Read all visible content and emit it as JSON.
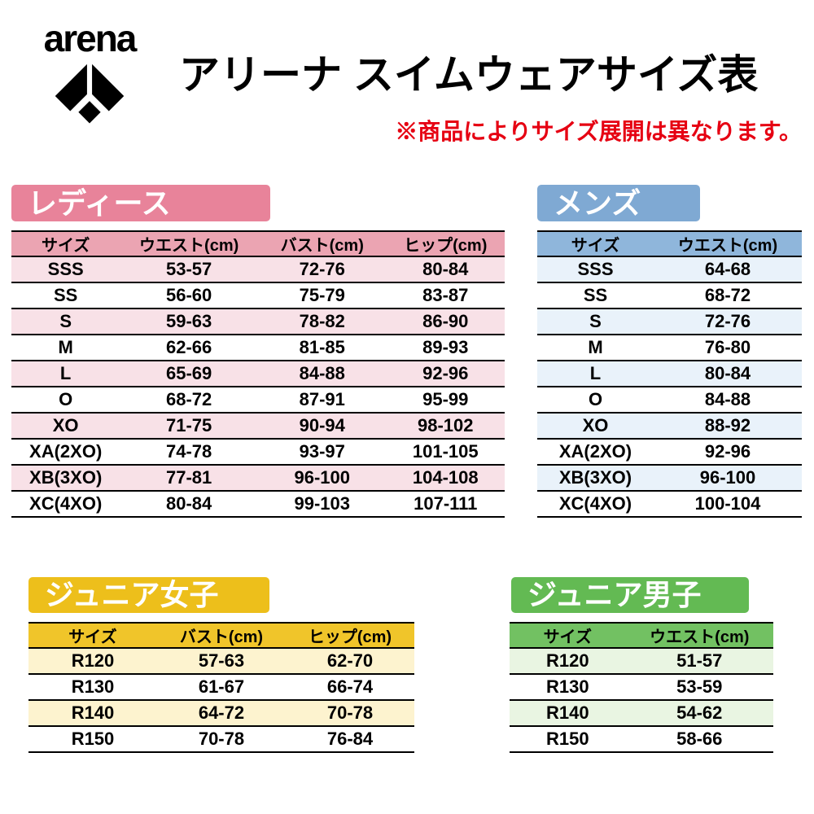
{
  "logo": {
    "wordmark": "arena"
  },
  "header": {
    "title": "アリーナ スイムウェアサイズ表",
    "note": "※商品によりサイズ展開は異なります。"
  },
  "sections": {
    "ladies": {
      "badge": "レディース",
      "headers": [
        "サイズ",
        "ウエスト(cm)",
        "バスト(cm)",
        "ヒップ(cm)"
      ],
      "rows": [
        [
          "SSS",
          "53-57",
          "72-76",
          "80-84"
        ],
        [
          "SS",
          "56-60",
          "75-79",
          "83-87"
        ],
        [
          "S",
          "59-63",
          "78-82",
          "86-90"
        ],
        [
          "M",
          "62-66",
          "81-85",
          "89-93"
        ],
        [
          "L",
          "65-69",
          "84-88",
          "92-96"
        ],
        [
          "O",
          "68-72",
          "87-91",
          "95-99"
        ],
        [
          "XO",
          "71-75",
          "90-94",
          "98-102"
        ],
        [
          "XA(2XO)",
          "74-78",
          "93-97",
          "101-105"
        ],
        [
          "XB(3XO)",
          "77-81",
          "96-100",
          "104-108"
        ],
        [
          "XC(4XO)",
          "80-84",
          "99-103",
          "107-111"
        ]
      ],
      "colors": {
        "badge": "#e8839a",
        "header": "#eba4b2",
        "row_tint": "#f8e1e7",
        "row_alt": "#ffffff"
      }
    },
    "mens": {
      "badge": "メンズ",
      "headers": [
        "サイズ",
        "ウエスト(cm)"
      ],
      "rows": [
        [
          "SSS",
          "64-68"
        ],
        [
          "SS",
          "68-72"
        ],
        [
          "S",
          "72-76"
        ],
        [
          "M",
          "76-80"
        ],
        [
          "L",
          "80-84"
        ],
        [
          "O",
          "84-88"
        ],
        [
          "XO",
          "88-92"
        ],
        [
          "XA(2XO)",
          "92-96"
        ],
        [
          "XB(3XO)",
          "96-100"
        ],
        [
          "XC(4XO)",
          "100-104"
        ]
      ],
      "colors": {
        "badge": "#7fa9d3",
        "header": "#8fb6db",
        "row_tint": "#e9f2fa",
        "row_alt": "#ffffff"
      }
    },
    "junior_girls": {
      "badge": "ジュニア女子",
      "headers": [
        "サイズ",
        "バスト(cm)",
        "ヒップ(cm)"
      ],
      "rows": [
        [
          "R120",
          "57-63",
          "62-70"
        ],
        [
          "R130",
          "61-67",
          "66-74"
        ],
        [
          "R140",
          "64-72",
          "70-78"
        ],
        [
          "R150",
          "70-78",
          "76-84"
        ]
      ],
      "colors": {
        "badge": "#edbf1b",
        "header": "#f0c52a",
        "row_tint": "#fdf3cf",
        "row_alt": "#ffffff"
      }
    },
    "junior_boys": {
      "badge": "ジュニア男子",
      "headers": [
        "サイズ",
        "ウエスト(cm)"
      ],
      "rows": [
        [
          "R120",
          "51-57"
        ],
        [
          "R130",
          "53-59"
        ],
        [
          "R140",
          "54-62"
        ],
        [
          "R150",
          "58-66"
        ]
      ],
      "colors": {
        "badge": "#63ba53",
        "header": "#72c162",
        "row_tint": "#e9f5e2",
        "row_alt": "#ffffff"
      }
    }
  }
}
